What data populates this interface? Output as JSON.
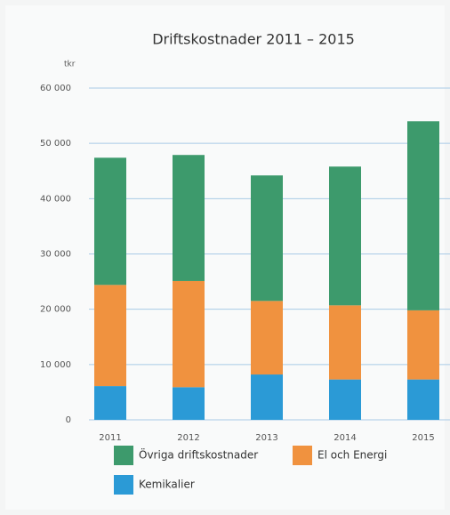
{
  "chart_data": {
    "type": "stacked_bar",
    "title": "Driftskostnader 2011 – 2015",
    "y_unit": "tkr",
    "categories": [
      "2011",
      "2012",
      "2013",
      "2014",
      "2015"
    ],
    "series": [
      {
        "name": "Kemikalier",
        "color": "#2b9ad6",
        "values": [
          6100,
          5900,
          8200,
          7300,
          7300
        ]
      },
      {
        "name": "El och Energi",
        "color": "#f0923f",
        "values": [
          18300,
          19200,
          13300,
          13400,
          12500
        ]
      },
      {
        "name": "Övriga driftskostnader",
        "color": "#3d9a6c",
        "values": [
          23000,
          22800,
          22700,
          25100,
          34200
        ]
      }
    ],
    "ylim": [
      0,
      60000
    ],
    "yticks": [
      0,
      {
        "value": 10000,
        "label": "10 000"
      },
      {
        "value": 20000,
        "label": "20 000"
      },
      {
        "value": 30000,
        "label": "30 000"
      },
      {
        "value": 40000,
        "label": "40 000"
      },
      {
        "value": 50000,
        "label": "50 000"
      },
      {
        "value": 60000,
        "label": "60 000"
      }
    ],
    "grid": true,
    "legend": "bottom"
  }
}
